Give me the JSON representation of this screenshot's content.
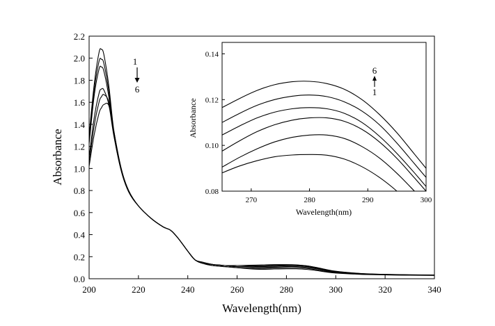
{
  "chart_data": [
    {
      "type": "line",
      "title": "",
      "xlabel": "Wavelength(nm)",
      "ylabel": "Absorbance",
      "xlim": [
        200,
        340
      ],
      "ylim": [
        0.0,
        2.2
      ],
      "x_ticks": [
        200,
        220,
        240,
        260,
        280,
        300,
        320,
        340
      ],
      "y_ticks": [
        0.0,
        0.2,
        0.4,
        0.6,
        0.8,
        1.0,
        1.2,
        1.4,
        1.6,
        1.8,
        2.0,
        2.2
      ],
      "x_tick_labels": [
        "200",
        "220",
        "240",
        "260",
        "280",
        "300",
        "320",
        "340"
      ],
      "y_tick_labels": [
        "0.0",
        "0.2",
        "0.4",
        "0.6",
        "0.8",
        "1.0",
        "1.2",
        "1.4",
        "1.6",
        "1.8",
        "2.0",
        "2.2"
      ],
      "grid": false,
      "annotation": {
        "top": "1",
        "bottom": "6",
        "arrow": "down"
      },
      "series": [
        {
          "x": [
            200,
            202,
            204,
            205,
            206,
            208,
            210,
            213,
            216,
            220,
            225,
            230,
            233,
            236,
            240,
            243,
            246,
            250,
            255,
            260,
            265,
            270,
            275,
            280,
            284,
            288,
            292,
            296,
            300,
            310,
            320,
            330,
            340
          ],
          "values": [
            1.3,
            1.75,
            2.05,
            2.08,
            2.03,
            1.75,
            1.35,
            1.0,
            0.8,
            0.66,
            0.55,
            0.47,
            0.44,
            0.37,
            0.25,
            0.17,
            0.14,
            0.12,
            0.11,
            0.1,
            0.09,
            0.085,
            0.088,
            0.09,
            0.09,
            0.085,
            0.075,
            0.062,
            0.052,
            0.04,
            0.035,
            0.032,
            0.03
          ]
        },
        {
          "x": [
            200,
            202,
            204,
            205,
            206,
            208,
            210,
            213,
            216,
            220,
            225,
            230,
            233,
            236,
            240,
            243,
            246,
            250,
            255,
            260,
            265,
            270,
            275,
            280,
            284,
            288,
            292,
            296,
            300,
            310,
            320,
            330,
            340
          ],
          "values": [
            1.26,
            1.7,
            1.97,
            1.99,
            1.95,
            1.7,
            1.33,
            0.99,
            0.8,
            0.66,
            0.55,
            0.47,
            0.44,
            0.37,
            0.25,
            0.17,
            0.14,
            0.12,
            0.11,
            0.1,
            0.095,
            0.093,
            0.097,
            0.1,
            0.1,
            0.094,
            0.082,
            0.067,
            0.056,
            0.042,
            0.036,
            0.033,
            0.031
          ]
        },
        {
          "x": [
            200,
            202,
            204,
            205,
            206,
            208,
            210,
            213,
            216,
            220,
            225,
            230,
            233,
            236,
            240,
            243,
            246,
            250,
            255,
            260,
            265,
            270,
            275,
            280,
            284,
            288,
            292,
            296,
            300,
            310,
            320,
            330,
            340
          ],
          "values": [
            1.22,
            1.65,
            1.9,
            1.92,
            1.88,
            1.65,
            1.31,
            0.98,
            0.79,
            0.66,
            0.55,
            0.47,
            0.44,
            0.37,
            0.25,
            0.17,
            0.14,
            0.13,
            0.12,
            0.11,
            0.105,
            0.102,
            0.106,
            0.11,
            0.11,
            0.103,
            0.09,
            0.073,
            0.06,
            0.044,
            0.037,
            0.034,
            0.032
          ]
        },
        {
          "x": [
            200,
            202,
            204,
            205,
            206,
            208,
            210,
            213,
            216,
            220,
            225,
            230,
            233,
            236,
            240,
            243,
            246,
            250,
            255,
            260,
            265,
            270,
            275,
            280,
            284,
            288,
            292,
            296,
            300,
            310,
            320,
            330,
            340
          ],
          "values": [
            1.1,
            1.45,
            1.68,
            1.72,
            1.71,
            1.58,
            1.3,
            0.98,
            0.79,
            0.66,
            0.55,
            0.47,
            0.44,
            0.37,
            0.25,
            0.17,
            0.15,
            0.13,
            0.12,
            0.11,
            0.112,
            0.11,
            0.114,
            0.118,
            0.118,
            0.111,
            0.097,
            0.078,
            0.063,
            0.046,
            0.038,
            0.034,
            0.032
          ]
        },
        {
          "x": [
            200,
            202,
            204,
            205,
            206,
            208,
            210,
            213,
            216,
            220,
            225,
            230,
            233,
            236,
            240,
            243,
            246,
            250,
            255,
            260,
            265,
            270,
            275,
            280,
            284,
            288,
            292,
            296,
            300,
            310,
            320,
            330,
            340
          ],
          "values": [
            1.06,
            1.38,
            1.6,
            1.65,
            1.67,
            1.6,
            1.32,
            0.99,
            0.79,
            0.66,
            0.55,
            0.47,
            0.44,
            0.37,
            0.25,
            0.17,
            0.15,
            0.13,
            0.12,
            0.12,
            0.118,
            0.118,
            0.121,
            0.124,
            0.124,
            0.117,
            0.102,
            0.082,
            0.066,
            0.047,
            0.039,
            0.035,
            0.033
          ]
        },
        {
          "x": [
            200,
            202,
            204,
            205,
            206,
            208,
            210,
            213,
            216,
            220,
            225,
            230,
            233,
            236,
            240,
            243,
            246,
            250,
            255,
            260,
            265,
            270,
            275,
            280,
            284,
            288,
            292,
            296,
            300,
            310,
            320,
            330,
            340
          ],
          "values": [
            1.02,
            1.3,
            1.5,
            1.55,
            1.58,
            1.57,
            1.34,
            1.0,
            0.8,
            0.66,
            0.55,
            0.47,
            0.44,
            0.37,
            0.25,
            0.17,
            0.15,
            0.13,
            0.12,
            0.12,
            0.122,
            0.125,
            0.128,
            0.128,
            0.126,
            0.118,
            0.103,
            0.084,
            0.068,
            0.048,
            0.04,
            0.036,
            0.034
          ]
        }
      ]
    },
    {
      "type": "line",
      "title": "",
      "xlabel": "Wavelength(nm)",
      "ylabel": "Absorbance",
      "xlim": [
        265,
        300
      ],
      "ylim": [
        0.08,
        0.145
      ],
      "x_ticks": [
        270,
        280,
        290,
        300
      ],
      "y_ticks": [
        0.08,
        0.1,
        0.12,
        0.14
      ],
      "x_tick_labels": [
        "270",
        "280",
        "290",
        "300"
      ],
      "y_tick_labels": [
        "0.08",
        "0.10",
        "0.12",
        "0.14"
      ],
      "grid": false,
      "annotation": {
        "top": "6",
        "bottom": "1",
        "arrow": "up"
      },
      "series": [
        {
          "x": [
            265,
            268,
            271,
            274,
            277,
            280,
            283,
            286,
            289,
            292,
            295,
            298,
            300
          ],
          "values": [
            0.088,
            0.091,
            0.0933,
            0.095,
            0.0958,
            0.096,
            0.0957,
            0.094,
            0.0907,
            0.086,
            0.08,
            0.0728,
            0.068
          ]
        },
        {
          "x": [
            265,
            268,
            271,
            274,
            277,
            280,
            283,
            286,
            289,
            292,
            295,
            298,
            300
          ],
          "values": [
            0.0905,
            0.0948,
            0.0985,
            0.1015,
            0.1035,
            0.1045,
            0.1045,
            0.103,
            0.0995,
            0.0945,
            0.0878,
            0.08,
            0.0745
          ]
        },
        {
          "x": [
            265,
            268,
            271,
            274,
            277,
            280,
            283,
            286,
            289,
            292,
            295,
            298,
            300
          ],
          "values": [
            0.0975,
            0.102,
            0.106,
            0.109,
            0.111,
            0.112,
            0.112,
            0.1105,
            0.107,
            0.1015,
            0.0943,
            0.0858,
            0.08
          ]
        },
        {
          "x": [
            265,
            268,
            271,
            274,
            277,
            280,
            283,
            286,
            289,
            292,
            295,
            298,
            300
          ],
          "values": [
            0.1045,
            0.1085,
            0.112,
            0.1145,
            0.116,
            0.1165,
            0.116,
            0.114,
            0.11,
            0.104,
            0.0965,
            0.088,
            0.082
          ]
        },
        {
          "x": [
            265,
            268,
            271,
            274,
            277,
            280,
            283,
            286,
            289,
            292,
            295,
            298,
            300
          ],
          "values": [
            0.11,
            0.114,
            0.1175,
            0.12,
            0.1215,
            0.122,
            0.1213,
            0.119,
            0.115,
            0.109,
            0.101,
            0.092,
            0.086
          ]
        },
        {
          "x": [
            265,
            268,
            271,
            274,
            277,
            280,
            283,
            286,
            289,
            292,
            295,
            298,
            300
          ],
          "values": [
            0.1165,
            0.1205,
            0.124,
            0.1265,
            0.1278,
            0.128,
            0.127,
            0.1245,
            0.12,
            0.1135,
            0.1055,
            0.0962,
            0.09
          ]
        }
      ]
    }
  ]
}
